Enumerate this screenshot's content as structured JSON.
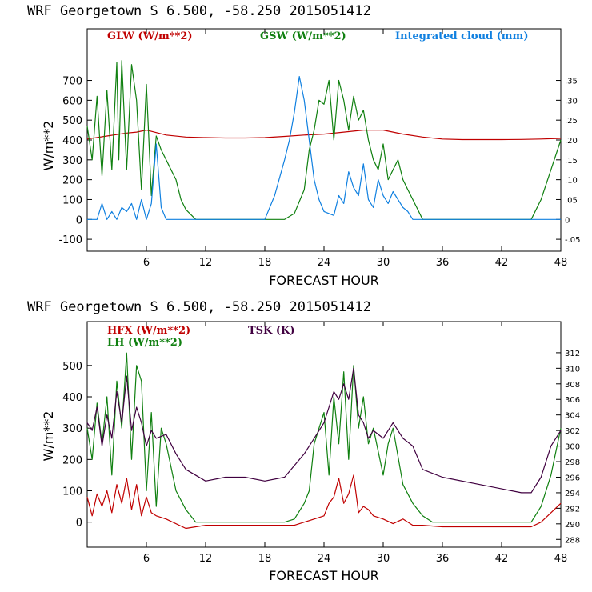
{
  "chart_data": [
    {
      "type": "line",
      "title": "WRF   Georgetown S   6.500, -58.250  2015051412",
      "xlabel": "FORECAST HOUR",
      "ylabel": "W/m**2",
      "xlim": [
        0,
        48
      ],
      "ylim": [
        -160,
        960
      ],
      "y2lim": [
        -0.08,
        0.48
      ],
      "x_ticks": [
        "6",
        "12",
        "18",
        "24",
        "30",
        "36",
        "42",
        "48"
      ],
      "y_ticks": [
        "-100",
        "0",
        "100",
        "200",
        "300",
        "400",
        "500",
        "600",
        "700"
      ],
      "y2_ticks": [
        "-.05",
        "0",
        ".05",
        ".10",
        ".15",
        ".20",
        ".25",
        ".30",
        ".35"
      ],
      "series": [
        {
          "name": "GLW (W/m**2)",
          "color": "#c00000",
          "axis": "left",
          "x": [
            0,
            2,
            4,
            5,
            6,
            8,
            10,
            12,
            14,
            16,
            18,
            20,
            22,
            24,
            26,
            28,
            30,
            32,
            34,
            36,
            38,
            40,
            42,
            44,
            46,
            48
          ],
          "y": [
            405,
            420,
            435,
            440,
            450,
            425,
            415,
            412,
            410,
            410,
            412,
            418,
            425,
            430,
            440,
            450,
            450,
            430,
            415,
            405,
            402,
            402,
            402,
            403,
            405,
            408
          ]
        },
        {
          "name": "GSW (W/m**2)",
          "color": "#108010",
          "axis": "left",
          "x": [
            0,
            0.5,
            1,
            1.5,
            2,
            2.5,
            3,
            3.2,
            3.5,
            4,
            4.5,
            5,
            5.5,
            6,
            6.5,
            7,
            7.5,
            8,
            8.5,
            9,
            9.5,
            10,
            11,
            20,
            21,
            22,
            22.5,
            23,
            23.5,
            24,
            24.5,
            25,
            25.5,
            26,
            26.5,
            27,
            27.5,
            28,
            28.5,
            29,
            29.5,
            30,
            30.5,
            31,
            31.5,
            32,
            32.5,
            33,
            33.5,
            34,
            35,
            45,
            46,
            47,
            48
          ],
          "y": [
            470,
            300,
            620,
            220,
            650,
            250,
            790,
            300,
            800,
            250,
            780,
            600,
            150,
            680,
            120,
            420,
            350,
            300,
            250,
            200,
            100,
            50,
            0,
            0,
            30,
            150,
            350,
            450,
            600,
            580,
            700,
            400,
            700,
            600,
            450,
            620,
            500,
            550,
            400,
            300,
            250,
            380,
            200,
            250,
            300,
            200,
            150,
            100,
            50,
            0,
            0,
            0,
            100,
            250,
            400
          ]
        },
        {
          "name": "Integrated cloud (mm)",
          "color": "#1080e0",
          "axis": "right",
          "x": [
            0,
            1,
            1.5,
            2,
            2.5,
            3,
            3.5,
            4,
            4.5,
            5,
            5.5,
            6,
            6.5,
            7,
            7.5,
            8,
            10,
            14,
            18,
            19,
            20,
            20.5,
            21,
            21.5,
            22,
            22.5,
            23,
            23.5,
            24,
            25,
            25.5,
            26,
            26.5,
            27,
            27.5,
            28,
            28.5,
            29,
            29.5,
            30,
            30.5,
            31,
            31.5,
            32,
            32.5,
            33,
            48
          ],
          "y": [
            0,
            0,
            0.04,
            0,
            0.02,
            0,
            0.03,
            0.02,
            0.04,
            0,
            0.05,
            0,
            0.04,
            0.19,
            0.03,
            0,
            0,
            0,
            0,
            0.06,
            0.15,
            0.2,
            0.27,
            0.36,
            0.3,
            0.2,
            0.1,
            0.05,
            0.02,
            0.01,
            0.06,
            0.04,
            0.12,
            0.08,
            0.06,
            0.14,
            0.05,
            0.03,
            0.1,
            0.06,
            0.04,
            0.07,
            0.05,
            0.03,
            0.02,
            0,
            0
          ]
        }
      ]
    },
    {
      "type": "line",
      "title": "WRF   Georgetown S   6.500, -58.250  2015051412",
      "xlabel": "FORECAST HOUR",
      "ylabel": "W/m**2",
      "xlim": [
        0,
        48
      ],
      "ylim": [
        -80,
        640
      ],
      "y2lim": [
        287,
        316
      ],
      "x_ticks": [
        "6",
        "12",
        "18",
        "24",
        "30",
        "36",
        "42",
        "48"
      ],
      "y_ticks": [
        "0",
        "100",
        "200",
        "300",
        "400",
        "500"
      ],
      "y2_ticks": [
        "288",
        "290",
        "292",
        "294",
        "296",
        "298",
        "300",
        "302",
        "304",
        "306",
        "308",
        "310",
        "312"
      ],
      "series": [
        {
          "name": "HFX (W/m**2)",
          "color": "#c00000",
          "axis": "left",
          "x": [
            0,
            0.5,
            1,
            1.5,
            2,
            2.5,
            3,
            3.5,
            4,
            4.5,
            5,
            5.5,
            6,
            6.5,
            7,
            8,
            10,
            12,
            18,
            21,
            22,
            23,
            24,
            24.5,
            25,
            25.5,
            26,
            26.5,
            27,
            27.5,
            28,
            28.5,
            29,
            30,
            31,
            32,
            33,
            34,
            36,
            40,
            44,
            45,
            46,
            47,
            48
          ],
          "y": [
            80,
            20,
            90,
            50,
            100,
            30,
            120,
            60,
            140,
            40,
            120,
            20,
            80,
            30,
            20,
            10,
            -20,
            -10,
            -10,
            -10,
            0,
            10,
            20,
            60,
            80,
            140,
            60,
            90,
            150,
            30,
            50,
            40,
            20,
            10,
            -5,
            10,
            -10,
            -10,
            -15,
            -15,
            -15,
            -15,
            0,
            30,
            60
          ]
        },
        {
          "name": "LH (W/m**2)",
          "color": "#108010",
          "axis": "left",
          "x": [
            0,
            0.5,
            1,
            1.5,
            2,
            2.5,
            3,
            3.5,
            4,
            4.5,
            5,
            5.5,
            6,
            6.5,
            7,
            7.5,
            8,
            9,
            10,
            11,
            20,
            21,
            22,
            22.5,
            23,
            23.5,
            24,
            24.5,
            25,
            25.5,
            26,
            26.5,
            27,
            27.5,
            28,
            28.5,
            29,
            30,
            30.5,
            31,
            32,
            33,
            34,
            35,
            45,
            46,
            47,
            48
          ],
          "y": [
            300,
            200,
            380,
            250,
            400,
            150,
            450,
            300,
            540,
            200,
            500,
            450,
            100,
            350,
            50,
            300,
            250,
            100,
            40,
            0,
            0,
            10,
            60,
            100,
            250,
            300,
            350,
            150,
            400,
            250,
            480,
            200,
            500,
            300,
            400,
            250,
            300,
            150,
            250,
            300,
            120,
            60,
            20,
            0,
            0,
            50,
            150,
            300
          ]
        },
        {
          "name": "TSK (K)",
          "color": "#400040",
          "axis": "right",
          "x": [
            0,
            0.5,
            1,
            1.5,
            2,
            2.5,
            3,
            3.5,
            4,
            4.5,
            5,
            5.5,
            6,
            6.5,
            7,
            8,
            9,
            10,
            12,
            14,
            16,
            18,
            20,
            21,
            22,
            23,
            24,
            24.5,
            25,
            25.5,
            26,
            26.5,
            27,
            27.5,
            28,
            28.5,
            29,
            30,
            31,
            32,
            33,
            34,
            36,
            40,
            44,
            45,
            46,
            47,
            48
          ],
          "y": [
            303,
            302,
            305,
            300,
            304,
            301,
            307,
            303,
            309,
            302,
            305,
            303,
            300,
            302,
            301,
            301.5,
            299,
            297,
            295.5,
            296,
            296,
            295.5,
            296,
            297.5,
            299,
            301,
            303,
            305,
            307,
            306,
            308,
            306,
            310,
            304,
            303,
            301,
            302,
            301,
            303,
            301,
            300,
            297,
            296,
            295,
            294,
            294,
            296,
            300,
            302
          ]
        }
      ]
    }
  ],
  "panels": [
    {
      "title": "WRF   Georgetown S   6.500, -58.250  2015051412",
      "legend": [
        "GLW (W/m**2)",
        "GSW (W/m**2)",
        "Integrated cloud (mm)"
      ],
      "ylabel": "W/m**2",
      "xlabel": "FORECAST HOUR"
    },
    {
      "title": "WRF   Georgetown S   6.500, -58.250  2015051412",
      "legend": [
        "HFX (W/m**2)",
        "TSK (K)",
        "LH  (W/m**2)"
      ],
      "ylabel": "W/m**2",
      "xlabel": "FORECAST HOUR"
    }
  ]
}
